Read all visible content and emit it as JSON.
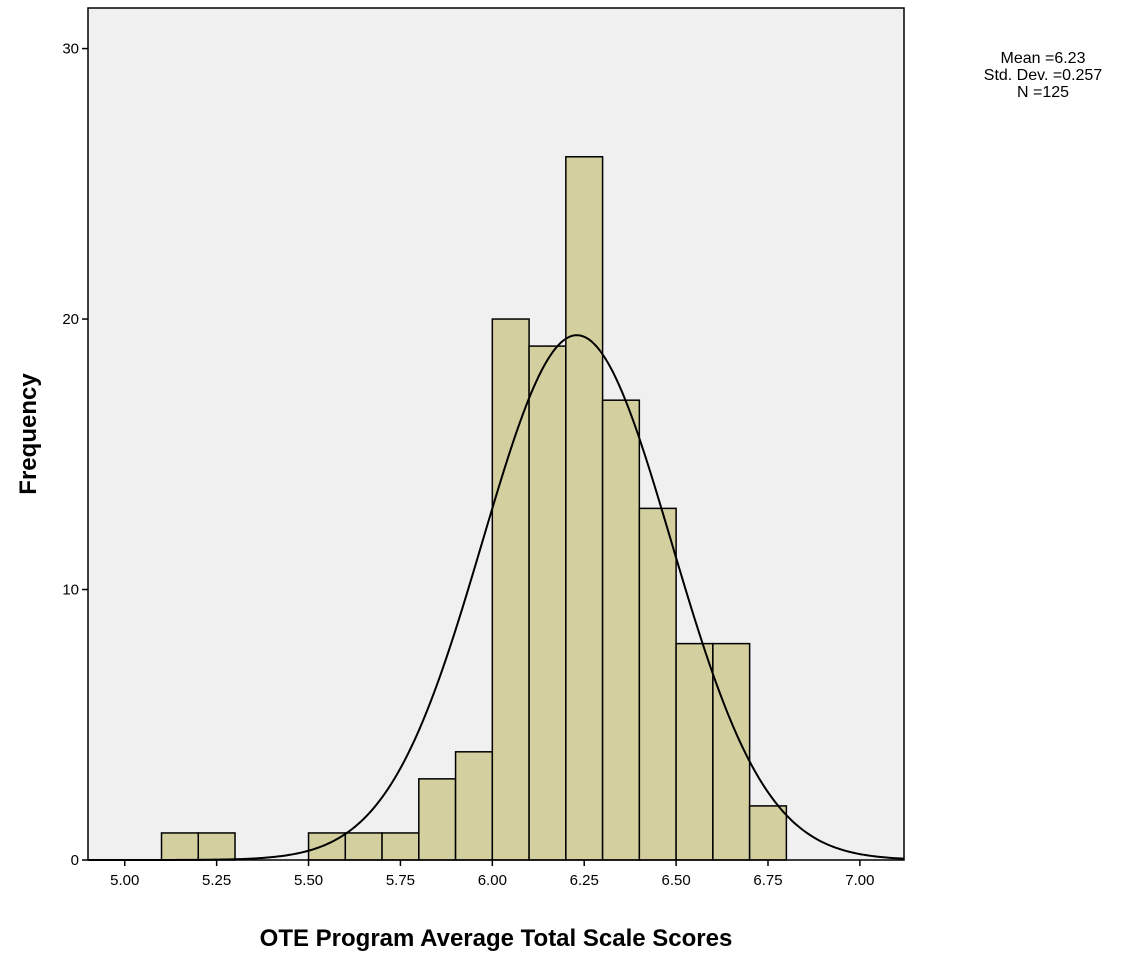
{
  "chart_data": {
    "type": "bar",
    "title": "",
    "xlabel": "OTE Program Average Total Scale Scores",
    "ylabel": "Frequency",
    "xlim": [
      4.9,
      7.12
    ],
    "ylim": [
      0,
      31.5
    ],
    "x_ticks": [
      "5.00",
      "5.25",
      "5.50",
      "5.75",
      "6.00",
      "6.25",
      "6.50",
      "6.75",
      "7.00"
    ],
    "y_ticks": [
      "0",
      "10",
      "20",
      "30"
    ],
    "bin_width": 0.1,
    "bins": [
      {
        "start": 5.1,
        "end": 5.2,
        "count": 1
      },
      {
        "start": 5.2,
        "end": 5.3,
        "count": 1
      },
      {
        "start": 5.5,
        "end": 5.6,
        "count": 1
      },
      {
        "start": 5.6,
        "end": 5.7,
        "count": 1
      },
      {
        "start": 5.7,
        "end": 5.8,
        "count": 1
      },
      {
        "start": 5.8,
        "end": 5.9,
        "count": 3
      },
      {
        "start": 5.9,
        "end": 6.0,
        "count": 4
      },
      {
        "start": 6.0,
        "end": 6.1,
        "count": 20
      },
      {
        "start": 6.1,
        "end": 6.2,
        "count": 19
      },
      {
        "start": 6.2,
        "end": 6.3,
        "count": 26
      },
      {
        "start": 6.3,
        "end": 6.4,
        "count": 17
      },
      {
        "start": 6.4,
        "end": 6.5,
        "count": 13
      },
      {
        "start": 6.5,
        "end": 6.6,
        "count": 8
      },
      {
        "start": 6.6,
        "end": 6.7,
        "count": 8
      },
      {
        "start": 6.7,
        "end": 6.8,
        "count": 2
      }
    ],
    "normal_curve": {
      "mean": 6.23,
      "std": 0.257,
      "n": 125
    },
    "stats": {
      "mean_label": "Mean =6.23",
      "std_label": "Std. Dev. =0.257",
      "n_label": "N =125"
    },
    "grid": false,
    "colors": {
      "bar_fill": "#d4cf9e",
      "bar_stroke": "#000000",
      "plot_background": "#f0f0f0",
      "curve": "#000000"
    }
  }
}
